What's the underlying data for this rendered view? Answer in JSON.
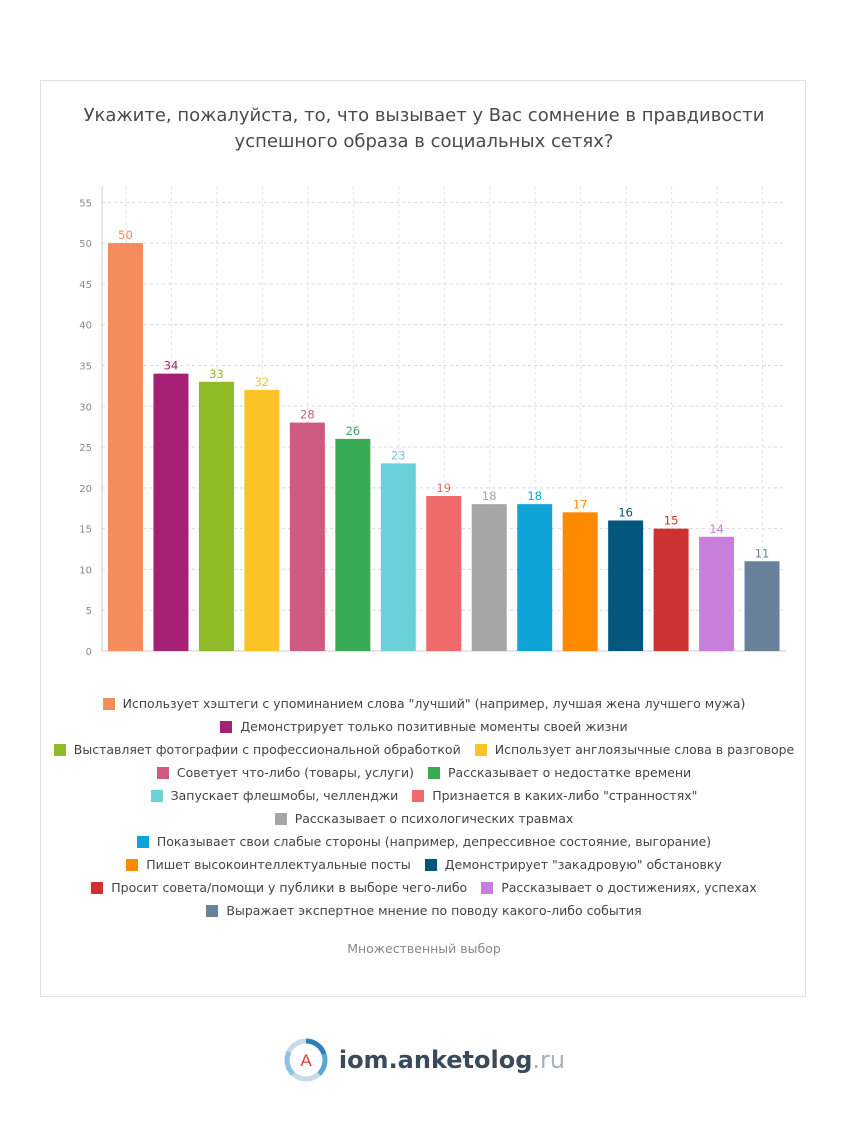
{
  "title_lines": [
    "Укажите, пожалуйста, то, что вызывает у Вас сомнение в правдивости",
    "успешного образа в социальных сетях?"
  ],
  "note": "Множественный выбор",
  "brand": {
    "name": "iom.anketolog",
    "tld": ".ru",
    "logo_letter": "A"
  },
  "chart_data": {
    "type": "bar",
    "title": "Укажите, пожалуйста, то, что вызывает у Вас сомнение в правдивости успешного образа в социальных сетях?",
    "ylim": [
      0,
      57
    ],
    "yticks": [
      0,
      5,
      10,
      15,
      20,
      25,
      30,
      35,
      40,
      45,
      50,
      55
    ],
    "grid": true,
    "legend_position": "bottom",
    "series": [
      {
        "name": "Использует хэштеги с упоминанием слова \"лучший\" (например, лучшая жена лучшего мужа)",
        "value": 50,
        "color": "#f58c5c"
      },
      {
        "name": "Демонстрирует только позитивные моменты своей жизни",
        "value": 34,
        "color": "#a62175"
      },
      {
        "name": "Выставляет фотографии с профессиональной обработкой",
        "value": 33,
        "color": "#8fba27"
      },
      {
        "name": "Использует англоязычные слова в разговоре",
        "value": 32,
        "color": "#fbc325"
      },
      {
        "name": "Советует что-либо (товары, услуги)",
        "value": 28,
        "color": "#d05b82"
      },
      {
        "name": "Рассказывает о недостатке времени",
        "value": 26,
        "color": "#3aab55"
      },
      {
        "name": "Запускает флешмобы, челленджи",
        "value": 23,
        "color": "#6ad1da"
      },
      {
        "name": "Признается в каких-либо \"странностях\"",
        "value": 19,
        "color": "#f16a6a"
      },
      {
        "name": "Рассказывает о психологических травмах",
        "value": 18,
        "color": "#a6a6a6"
      },
      {
        "name": "Показывает свои слабые стороны (например, депрессивное состояние, выгорание)",
        "value": 18,
        "color": "#10a3d8"
      },
      {
        "name": "Пишет высокоинтеллектуальные посты",
        "value": 17,
        "color": "#ff8a00"
      },
      {
        "name": "Демонстрирует \"закадровую\" обстановку",
        "value": 16,
        "color": "#03577c"
      },
      {
        "name": "Просит совета/помощи у публики в выборе чего-либо",
        "value": 15,
        "color": "#cc3232"
      },
      {
        "name": "Рассказывает о достижениях, успехах",
        "value": 14,
        "color": "#c77fdb"
      },
      {
        "name": "Выражает экспертное мнение по поводу какого-либо события",
        "value": 11,
        "color": "#67829a"
      }
    ],
    "legend_rows": [
      [
        0
      ],
      [
        1
      ],
      [
        2,
        3
      ],
      [
        4,
        5
      ],
      [
        6,
        7
      ],
      [
        8
      ],
      [
        9
      ],
      [
        10,
        11
      ],
      [
        12,
        13
      ],
      [
        14
      ]
    ]
  }
}
